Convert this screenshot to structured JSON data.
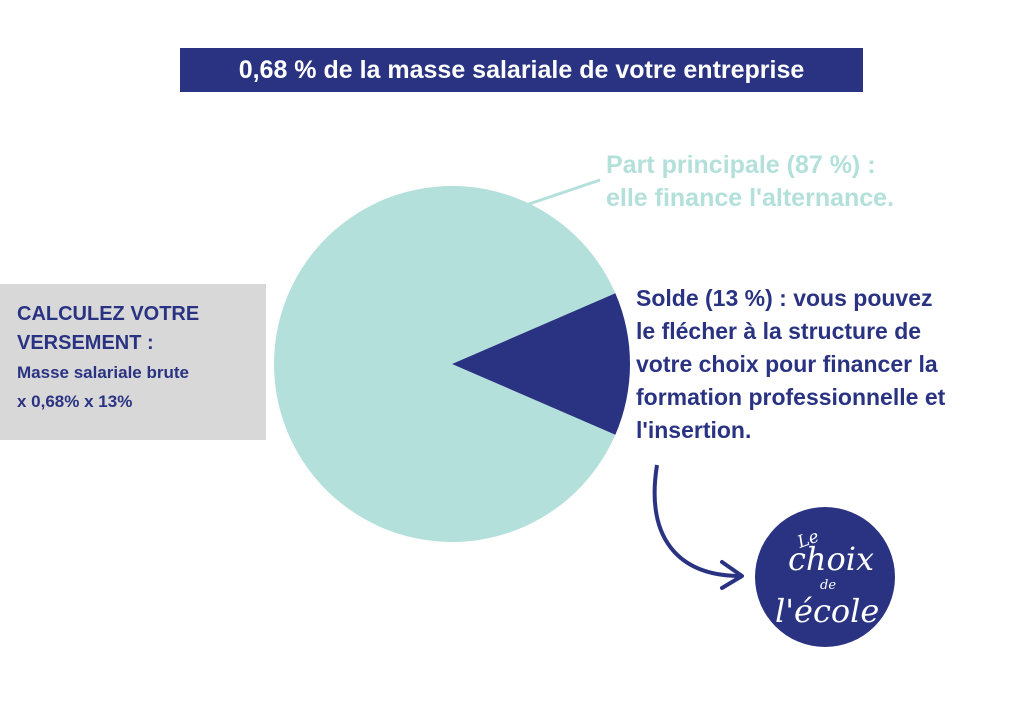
{
  "title": "0,68 % de la masse salariale de votre entreprise",
  "calc": {
    "heading": "CALCULEZ VOTRE\nVERSEMENT :",
    "line1": "Masse salariale brute",
    "line2": "x 0,68% x 13%"
  },
  "chart_data": {
    "type": "pie",
    "slices": [
      {
        "label": "Part principale (87 %) :\nelle finance l'alternance.",
        "value": 87,
        "color": "#b3e0da"
      },
      {
        "label": "Solde (13 %) : vous pouvez\nle flécher à la structure de\nvotre choix pour financer la\nformation professionnelle et\nl'insertion.",
        "value": 13,
        "color": "#2a3382"
      }
    ]
  },
  "logo": {
    "text": "Le choix de l'école",
    "color": "#2a3382"
  }
}
